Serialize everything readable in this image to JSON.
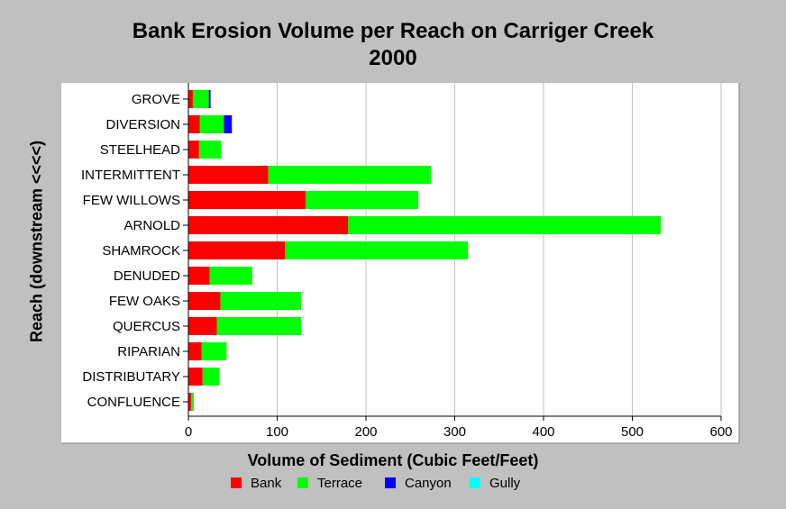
{
  "chart_data": {
    "type": "bar",
    "orientation": "horizontal",
    "stacked": true,
    "title": "Bank Erosion Volume per Reach on Carriger Creek",
    "subtitle": "2000",
    "xlabel": "Volume of Sediment (Cubic Feet/Feet)",
    "ylabel": "Reach (downstream <<<<)",
    "xlim": [
      0,
      600
    ],
    "xticks": [
      "0",
      "100",
      "200",
      "300",
      "400",
      "500",
      "600"
    ],
    "grid": "vertical",
    "legend_position": "bottom",
    "categories": [
      "GROVE",
      "DIVERSION",
      "STEELHEAD",
      "INTERMITTENT",
      "FEW WILLOWS",
      "ARNOLD",
      "SHAMROCK",
      "DENUDED",
      "FEW OAKS",
      "QUERCUS",
      "RIPARIAN",
      "DISTRIBUTARY",
      "CONFLUENCE"
    ],
    "series": [
      {
        "name": "Bank",
        "color": "#ff0000",
        "values": [
          5,
          13,
          12,
          90,
          132,
          180,
          109,
          24,
          36,
          32,
          15,
          16,
          3
        ]
      },
      {
        "name": "Terrace",
        "color": "#00ff00",
        "values": [
          18,
          27,
          25,
          183,
          127,
          352,
          206,
          48,
          91,
          95,
          28,
          19,
          3
        ]
      },
      {
        "name": "Canyon",
        "color": "#0000ff",
        "values": [
          2,
          9,
          0,
          0,
          0,
          0,
          0,
          0,
          0,
          0,
          0,
          0,
          0
        ]
      },
      {
        "name": "Gully",
        "color": "#00ffff",
        "values": [
          0,
          0,
          0,
          0,
          0,
          0,
          0,
          0,
          0,
          0,
          0,
          0,
          0
        ]
      }
    ]
  }
}
